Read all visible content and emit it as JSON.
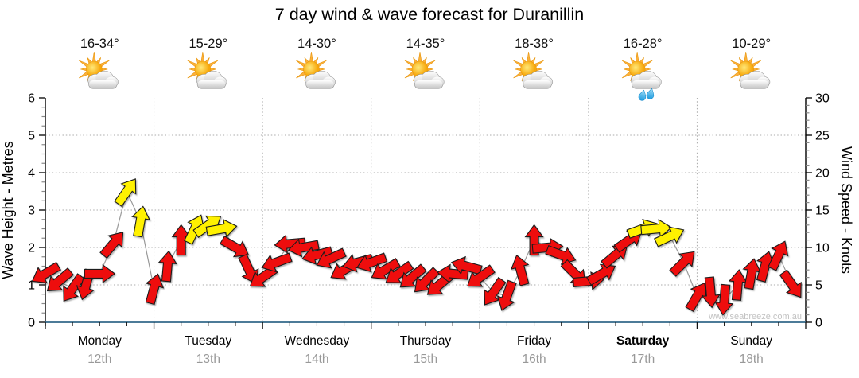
{
  "title": "7 day wind & wave forecast for Duranillin",
  "watermark": "www.seabreeze.com.au",
  "colors": {
    "arrow_red": "#ee1111",
    "arrow_yellow": "#fff100",
    "arrow_outline": "#1a1a1a",
    "wind_line": "#9a9a9a",
    "grid": "#ababab",
    "axis_spine": "#000000",
    "x_axis_line": "#33688a",
    "minor_tick": "#8a8a8a",
    "date_text": "#999999",
    "watermark_text": "#c2c2c2",
    "sun_core": "#f7a80b",
    "sun_ray": "#fbb03b",
    "cloud_fill": "#c4c4c4",
    "rain_drop": "#1e9ce0"
  },
  "left_axis": {
    "label": "Wave Height - Metres",
    "min": 0,
    "max": 6,
    "major_step": 1,
    "minor_step": 0.25,
    "ticks": [
      "0",
      "1",
      "2",
      "3",
      "4",
      "5",
      "6"
    ]
  },
  "right_axis": {
    "label": "Wind Speed - Knots",
    "min": 0,
    "max": 30,
    "major_step": 5,
    "minor_step": 1,
    "ticks": [
      "0",
      "5",
      "10",
      "15",
      "20",
      "25",
      "30"
    ]
  },
  "days": [
    {
      "name": "Monday",
      "date": "12th",
      "temp_range": "16-34°",
      "icon": "sun-cloud-icon",
      "rain": false,
      "bold": false
    },
    {
      "name": "Tuesday",
      "date": "13th",
      "temp_range": "15-29°",
      "icon": "sun-cloud-icon",
      "rain": false,
      "bold": false
    },
    {
      "name": "Wednesday",
      "date": "14th",
      "temp_range": "14-30°",
      "icon": "sun-cloud-icon",
      "rain": false,
      "bold": false
    },
    {
      "name": "Thursday",
      "date": "15th",
      "temp_range": "14-35°",
      "icon": "sun-cloud-icon",
      "rain": false,
      "bold": false
    },
    {
      "name": "Friday",
      "date": "16th",
      "temp_range": "18-38°",
      "icon": "sun-cloud-icon",
      "rain": false,
      "bold": false
    },
    {
      "name": "Saturday",
      "date": "17th",
      "temp_range": "16-28°",
      "icon": "sun-cloud-shower-icon",
      "rain": true,
      "bold": true
    },
    {
      "name": "Sunday",
      "date": "18th",
      "temp_range": "10-29°",
      "icon": "sun-cloud-icon",
      "rain": false,
      "bold": false
    }
  ],
  "chart_data": {
    "type": "scatter",
    "title": "7 day wind & wave forecast for Duranillin",
    "xlabel_days": [
      "Monday 12th",
      "Tuesday 13th",
      "Wednesday 14th",
      "Thursday 15th",
      "Friday 16th",
      "Saturday 17th",
      "Sunday 18th"
    ],
    "ylabel_left": "Wave Height - Metres",
    "ylabel_right": "Wind Speed - Knots",
    "ylim_left_metres": [
      0,
      6
    ],
    "ylim_right_knots": [
      0,
      30
    ],
    "x_span_hours": 168,
    "grid": "dotted, vertical at day boundaries, horizontal every 5 knots",
    "legend": "arrow colour: red = lighter wind, yellow = stronger wind (~12 kt and above); arrow rotation = wind direction (0 = up/N, 90 = right/E)",
    "point_format": [
      "hours_from_monday_0000",
      "wind_speed_knots",
      "arrow_direction_deg",
      "colour"
    ],
    "series": [
      {
        "name": "Wind speed & direction",
        "points": [
          [
            0,
            6.5,
            240,
            "red"
          ],
          [
            3,
            5.5,
            230,
            "red"
          ],
          [
            6,
            4.5,
            215,
            "red"
          ],
          [
            9,
            5,
            195,
            "red"
          ],
          [
            12,
            6.5,
            90,
            "red"
          ],
          [
            15,
            10.5,
            40,
            "red"
          ],
          [
            18,
            17.5,
            35,
            "yellow"
          ],
          [
            21,
            13.5,
            10,
            "yellow"
          ],
          [
            24,
            4.5,
            15,
            "red"
          ],
          [
            27,
            7.5,
            5,
            "red"
          ],
          [
            30,
            11,
            0,
            "red"
          ],
          [
            33,
            12.5,
            25,
            "yellow"
          ],
          [
            36,
            13,
            55,
            "yellow"
          ],
          [
            39,
            12.5,
            80,
            "yellow"
          ],
          [
            42,
            10,
            120,
            "red"
          ],
          [
            45,
            7,
            155,
            "red"
          ],
          [
            48,
            6,
            235,
            "red"
          ],
          [
            51,
            8,
            250,
            "red"
          ],
          [
            54,
            10.5,
            265,
            "red"
          ],
          [
            57,
            10,
            260,
            "red"
          ],
          [
            60,
            9,
            255,
            "red"
          ],
          [
            63,
            8.5,
            245,
            "red"
          ],
          [
            66,
            7,
            240,
            "red"
          ],
          [
            69,
            8,
            255,
            "red"
          ],
          [
            72,
            8,
            250,
            "red"
          ],
          [
            75,
            7,
            240,
            "red"
          ],
          [
            78,
            6.5,
            235,
            "red"
          ],
          [
            81,
            6,
            230,
            "red"
          ],
          [
            84,
            5.5,
            225,
            "red"
          ],
          [
            87,
            5,
            230,
            "red"
          ],
          [
            90,
            6.5,
            275,
            "red"
          ],
          [
            93,
            7.5,
            285,
            "red"
          ],
          [
            96,
            6,
            235,
            "red"
          ],
          [
            99,
            4,
            215,
            "red"
          ],
          [
            102,
            3.5,
            200,
            "red"
          ],
          [
            105,
            7,
            345,
            "red"
          ],
          [
            108,
            11,
            0,
            "red"
          ],
          [
            111,
            10,
            85,
            "red"
          ],
          [
            114,
            9,
            110,
            "red"
          ],
          [
            117,
            6.5,
            135,
            "red"
          ],
          [
            120,
            5.5,
            85,
            "red"
          ],
          [
            123,
            6.5,
            60,
            "red"
          ],
          [
            126,
            9,
            50,
            "red"
          ],
          [
            129,
            11,
            55,
            "red"
          ],
          [
            132,
            12.5,
            70,
            "yellow"
          ],
          [
            135,
            12.5,
            85,
            "yellow"
          ],
          [
            138,
            11.5,
            65,
            "yellow"
          ],
          [
            141,
            8,
            45,
            "red"
          ],
          [
            144,
            3.5,
            30,
            "red"
          ],
          [
            147,
            4,
            175,
            "red"
          ],
          [
            150,
            3,
            185,
            "red"
          ],
          [
            153,
            5,
            5,
            "red"
          ],
          [
            156,
            6.5,
            10,
            "red"
          ],
          [
            159,
            7.5,
            15,
            "red"
          ],
          [
            162,
            9,
            25,
            "red"
          ],
          [
            165,
            5,
            145,
            "red"
          ]
        ]
      }
    ]
  }
}
